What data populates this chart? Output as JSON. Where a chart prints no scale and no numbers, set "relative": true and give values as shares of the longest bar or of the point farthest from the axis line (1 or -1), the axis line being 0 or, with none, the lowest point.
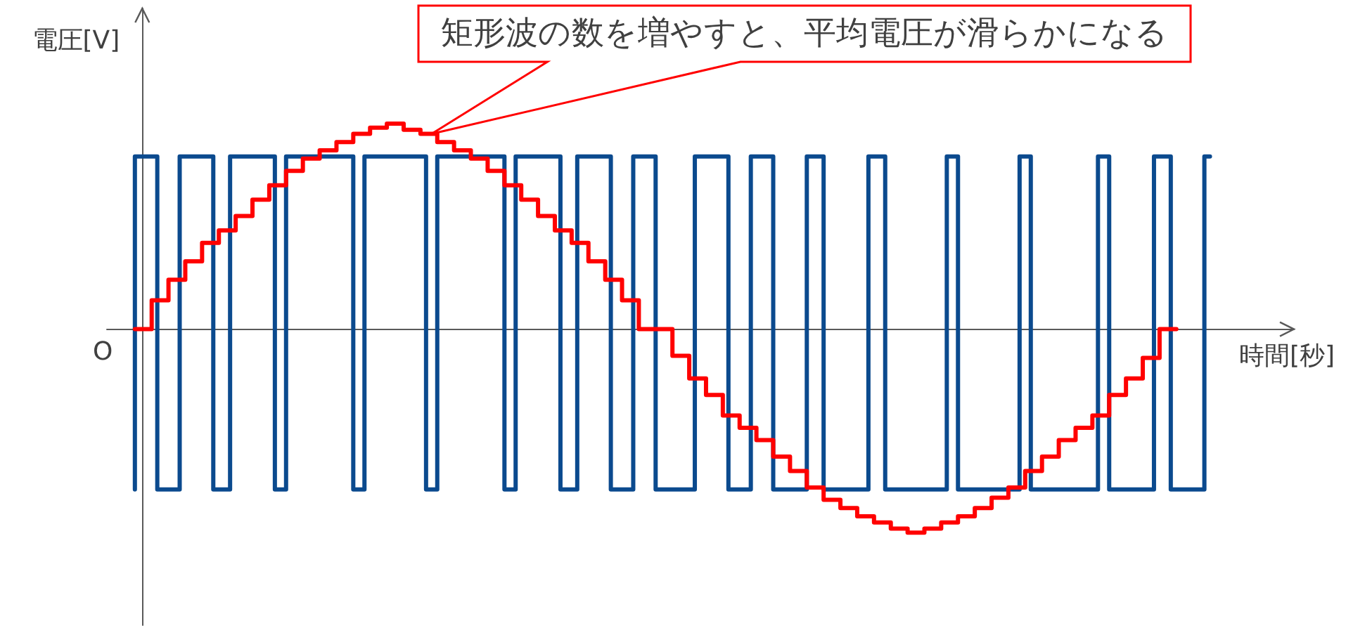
{
  "chart_data": {
    "type": "step",
    "xlabel": "時間[秒]",
    "ylabel": "電圧[V]",
    "annotations": [
      "矩形波の数を増やすと、平均電圧が滑らかになる",
      "O"
    ],
    "relative": true,
    "tick_labels": false,
    "categories": [
      null,
      null,
      null,
      null,
      null,
      null,
      null,
      null,
      null,
      null,
      null,
      null,
      null,
      null,
      null,
      null,
      null,
      null,
      null,
      null,
      null,
      null,
      null,
      null,
      null,
      null,
      null,
      null,
      null,
      null,
      null,
      null,
      null,
      null,
      null,
      null,
      null,
      null,
      null,
      null,
      null,
      null,
      null,
      null,
      null,
      null,
      null,
      null,
      null,
      null,
      null,
      null,
      null,
      null,
      null,
      null,
      null,
      null,
      null,
      null,
      null,
      null,
      null,
      null,
      null,
      null,
      null,
      null,
      null,
      null,
      null,
      null,
      null,
      null,
      null,
      null,
      null,
      null,
      null,
      null,
      null,
      null,
      null,
      null,
      null,
      null,
      null,
      null,
      null,
      null,
      null,
      null,
      null,
      null,
      null,
      null,
      null,
      null,
      null,
      null,
      null,
      null,
      null,
      null,
      null,
      null,
      null,
      null,
      null,
      null,
      null,
      null,
      null,
      null,
      null,
      null,
      null,
      null,
      null,
      null,
      null,
      null,
      null,
      null,
      null,
      null,
      null,
      null,
      null,
      null,
      null,
      null,
      null,
      null,
      null,
      null,
      null,
      null,
      null,
      null,
      null,
      null,
      null,
      null,
      null,
      null,
      null,
      null,
      null,
      null,
      null,
      null,
      null,
      null,
      null,
      null,
      null,
      null,
      null,
      null,
      null,
      null,
      null,
      null,
      null,
      null,
      null,
      null,
      null,
      null,
      null,
      null,
      null,
      null,
      null,
      null,
      null,
      null,
      null,
      null,
      null,
      null,
      null,
      null,
      null,
      null,
      null,
      null,
      null,
      null,
      null,
      null,
      null
    ],
    "series": [
      {
        "color": "#0b4a8e",
        "values": [
          -0.78,
          0.84,
          0.84,
          0.84,
          0.84,
          -0.78,
          -0.78,
          -0.78,
          -0.78,
          0.84,
          0.84,
          0.84,
          0.84,
          0.84,
          0.84,
          -0.78,
          -0.78,
          -0.78,
          0.84,
          0.84,
          0.84,
          0.84,
          0.84,
          0.84,
          0.84,
          0.84,
          -0.78,
          -0.78,
          0.84,
          0.84,
          0.84,
          0.84,
          0.84,
          0.84,
          0.84,
          0.84,
          0.84,
          0.84,
          0.84,
          0.84,
          -0.78,
          -0.78,
          0.84,
          0.84,
          0.84,
          0.84,
          0.84,
          0.84,
          0.84,
          0.84,
          0.84,
          0.84,
          0.84,
          -0.78,
          -0.78,
          0.84,
          0.84,
          0.84,
          0.84,
          0.84,
          0.84,
          0.84,
          0.84,
          0.84,
          0.84,
          0.84,
          0.84,
          -0.78,
          -0.78,
          0.84,
          0.84,
          0.84,
          0.84,
          0.84,
          0.84,
          0.84,
          0.84,
          -0.78,
          -0.78,
          -0.78,
          0.84,
          0.84,
          0.84,
          0.84,
          0.84,
          0.84,
          -0.78,
          -0.78,
          -0.78,
          -0.78,
          0.84,
          0.84,
          0.84,
          0.84,
          -0.78,
          -0.78,
          -0.78,
          -0.78,
          -0.78,
          -0.78,
          -0.78,
          0.84,
          0.84,
          0.84,
          0.84,
          0.84,
          0.84,
          -0.78,
          -0.78,
          -0.78,
          -0.78,
          0.84,
          0.84,
          0.84,
          0.84,
          -0.78,
          -0.78,
          -0.78,
          -0.78,
          -0.78,
          -0.78,
          0.84,
          0.84,
          0.84,
          -0.78,
          -0.78,
          -0.78,
          -0.78,
          -0.78,
          -0.78,
          -0.78,
          -0.78,
          0.84,
          0.84,
          0.84,
          -0.78,
          -0.78,
          -0.78,
          -0.78,
          -0.78,
          -0.78,
          -0.78,
          -0.78,
          -0.78,
          -0.78,
          -0.78,
          0.84,
          0.84,
          -0.78,
          -0.78,
          -0.78,
          -0.78,
          -0.78,
          -0.78,
          -0.78,
          -0.78,
          -0.78,
          -0.78,
          -0.78,
          0.84,
          0.84,
          -0.78,
          -0.78,
          -0.78,
          -0.78,
          -0.78,
          -0.78,
          -0.78,
          -0.78,
          -0.78,
          -0.78,
          -0.78,
          -0.78,
          0.84,
          0.84,
          -0.78,
          -0.78,
          -0.78,
          -0.78,
          -0.78,
          -0.78,
          -0.78,
          -0.78,
          0.84,
          0.84,
          0.84,
          -0.78,
          -0.78,
          -0.78,
          -0.78,
          -0.78,
          -0.78,
          0.84
        ]
      },
      {
        "color": "#ff0000",
        "values": [
          0,
          0,
          0,
          0,
          0.14,
          0.14,
          0.14,
          0.24,
          0.24,
          0.24,
          0.33,
          0.33,
          0.33,
          0.42,
          0.42,
          0.42,
          0.48,
          0.48,
          0.48,
          0.55,
          0.55,
          0.55,
          0.63,
          0.63,
          0.63,
          0.7,
          0.7,
          0.7,
          0.77,
          0.77,
          0.77,
          0.83,
          0.83,
          0.83,
          0.87,
          0.87,
          0.87,
          0.91,
          0.91,
          0.91,
          0.95,
          0.95,
          0.95,
          0.98,
          0.98,
          0.98,
          1,
          1,
          1,
          0.97,
          0.97,
          0.97,
          0.95,
          0.95,
          0.95,
          0.91,
          0.91,
          0.91,
          0.87,
          0.87,
          0.87,
          0.83,
          0.83,
          0.83,
          0.77,
          0.77,
          0.77,
          0.7,
          0.7,
          0.7,
          0.63,
          0.63,
          0.63,
          0.55,
          0.55,
          0.55,
          0.48,
          0.48,
          0.48,
          0.42,
          0.42,
          0.42,
          0.33,
          0.33,
          0.33,
          0.24,
          0.24,
          0.24,
          0.14,
          0.14,
          0.14,
          0,
          0,
          0,
          0,
          0,
          0,
          -0.13,
          -0.13,
          -0.13,
          -0.24,
          -0.24,
          -0.24,
          -0.32,
          -0.32,
          -0.32,
          -0.42,
          -0.42,
          -0.42,
          -0.48,
          -0.48,
          -0.48,
          -0.54,
          -0.54,
          -0.54,
          -0.62,
          -0.62,
          -0.62,
          -0.69,
          -0.69,
          -0.69,
          -0.77,
          -0.77,
          -0.77,
          -0.83,
          -0.83,
          -0.83,
          -0.87,
          -0.87,
          -0.87,
          -0.91,
          -0.91,
          -0.91,
          -0.94,
          -0.94,
          -0.94,
          -0.97,
          -0.97,
          -0.97,
          -0.99,
          -0.99,
          -0.99,
          -0.97,
          -0.97,
          -0.97,
          -0.94,
          -0.94,
          -0.94,
          -0.91,
          -0.91,
          -0.91,
          -0.87,
          -0.87,
          -0.87,
          -0.82,
          -0.82,
          -0.82,
          -0.77,
          -0.77,
          -0.77,
          -0.69,
          -0.69,
          -0.69,
          -0.62,
          -0.62,
          -0.62,
          -0.54,
          -0.54,
          -0.54,
          -0.48,
          -0.48,
          -0.48,
          -0.42,
          -0.42,
          -0.42,
          -0.32,
          -0.32,
          -0.32,
          -0.24,
          -0.24,
          -0.24,
          -0.14,
          -0.14,
          -0.14,
          0,
          0,
          0,
          null,
          null,
          null,
          null,
          null,
          null
        ]
      }
    ]
  }
}
